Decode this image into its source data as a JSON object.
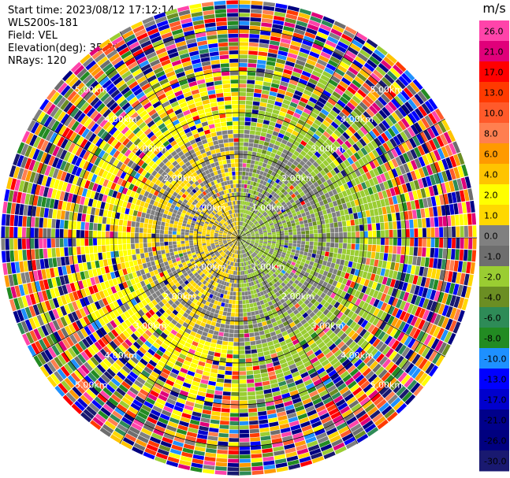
{
  "header": {
    "start_time": "Start time: 2023/08/12 17:12:14",
    "instrument": "WLS200s-181",
    "field": "Field: VEL",
    "elevation": "Elevation(deg): 35.30",
    "nrays": "NRays: 120"
  },
  "chart_data": {
    "type": "heatmap",
    "projection": "polar-ppi",
    "field": "VEL",
    "units": "m/s",
    "nrays": 120,
    "range_rings_km": [
      1.0,
      2.0,
      3.0,
      4.0,
      5.0
    ],
    "ring_labels": [
      "1.00km",
      "2.00km",
      "3.00km",
      "4.00km",
      "5.00km"
    ],
    "colorbar": {
      "units": "m/s",
      "ticks": [
        "26.0",
        "21.0",
        "17.0",
        "13.0",
        "10.0",
        "8.0",
        "6.0",
        "4.0",
        "2.0",
        "1.0",
        "0.0",
        "-1.0",
        "-2.0",
        "-4.0",
        "-6.0",
        "-8.0",
        "-10.0",
        "-13.0",
        "-17.0",
        "-21.0",
        "-26.0",
        "-30.0"
      ],
      "colors": [
        "#ff44aa",
        "#e0007a",
        "#ff0000",
        "#ff3a00",
        "#ff5a2a",
        "#ff7f50",
        "#ff9a00",
        "#ffc400",
        "#ffff00",
        "#ffd800",
        "#808080",
        "#6e6e6e",
        "#9acd32",
        "#6b8e23",
        "#2e8b57",
        "#228b22",
        "#1e90ff",
        "#0000ff",
        "#0000cd",
        "#00008b",
        "#000080",
        "#191970"
      ]
    },
    "structure": {
      "inner_zone_km": 1.0,
      "mid_zone_km": 2.6,
      "outer_zone_km": 5.7,
      "west_half": "positive velocity (yellow)",
      "east_half": "negative velocity (yellow-green)",
      "outer_region": "noisy multicolor"
    }
  }
}
